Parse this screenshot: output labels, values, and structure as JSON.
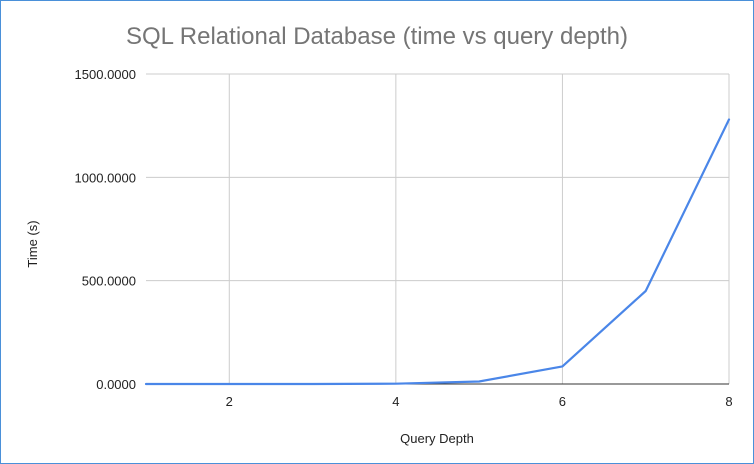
{
  "chart_data": {
    "type": "line",
    "title": "SQL Relational Database (time vs query depth)",
    "xlabel": "Query Depth",
    "ylabel": "Time (s)",
    "xlim": [
      1,
      8
    ],
    "ylim": [
      0,
      1500
    ],
    "x_ticks": [
      "2",
      "4",
      "6",
      "8"
    ],
    "y_ticks": [
      "0.0000",
      "500.0000",
      "1000.0000",
      "1500.0000"
    ],
    "grid": true,
    "legend": "none",
    "series": [
      {
        "color": "#4a86e8",
        "x": [
          1,
          2,
          3,
          4,
          5,
          6,
          7,
          8
        ],
        "values": [
          0.001,
          0.01,
          0.1,
          1.5,
          12,
          85,
          450,
          1280
        ]
      }
    ]
  }
}
